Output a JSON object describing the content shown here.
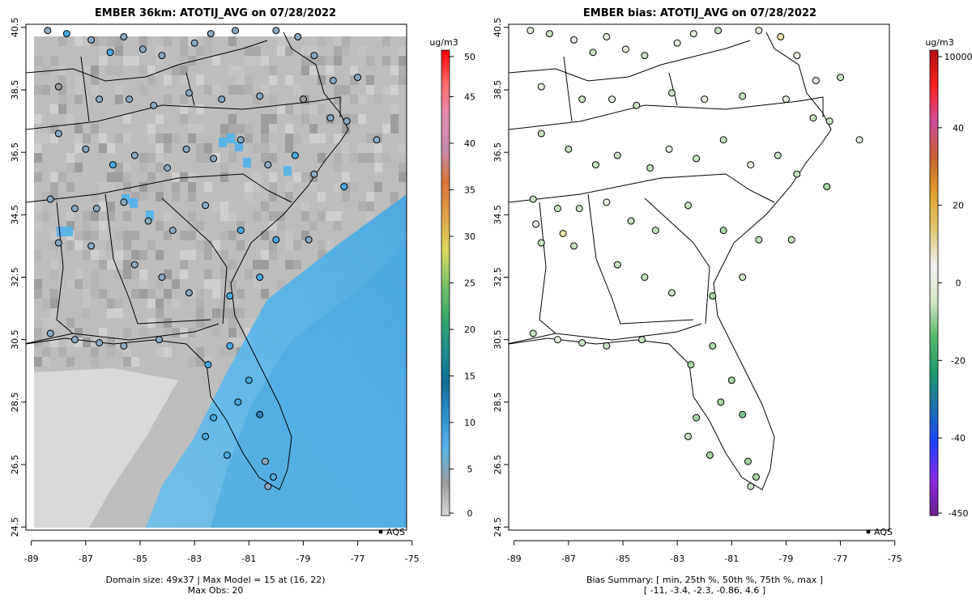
{
  "left_panel": {
    "title": "EMBER 36km: ATOTIJ_AVG on 07/28/2022",
    "footer_line1": "Domain size: 49x37 | Max Model = 15 at (16, 22)",
    "footer_line2": "Max Obs: 20",
    "legend_unit": "ug/m3",
    "aqs_label": "AQS",
    "colorbar_ticks": [
      "0",
      "5",
      "10",
      "15",
      "20",
      "25",
      "30",
      "35",
      "40",
      "45",
      "50"
    ],
    "colorbar_stops": [
      "#d9d9d9",
      "#9a9a9a",
      "#5cb3e8",
      "#2f8fcc",
      "#156e96",
      "#1e8f8a",
      "#3aa66a",
      "#7fc36a",
      "#d8d85a",
      "#e0a24a",
      "#d8753a",
      "#c48aa8",
      "#e08bb0",
      "#ff6a6a",
      "#ff0000"
    ]
  },
  "right_panel": {
    "title": "EMBER bias: ATOTIJ_AVG on 07/28/2022",
    "footer_line1": "Bias Summary: [ min, 25th %, 50th %, 75th %, max ]",
    "footer_line2": "[ -11,   -3.4,   -2.3,   -0.86,   4.6 ]",
    "legend_unit": "ug/m3",
    "aqs_label": "AQS",
    "colorbar_ticks": [
      "-450",
      "-40",
      "-20",
      "0",
      "20",
      "40",
      "10000"
    ],
    "colorbar_stops": [
      "#6a1f8a",
      "#8a2be2",
      "#2040ff",
      "#1e6fb0",
      "#1e9a6a",
      "#5ab86a",
      "#d6e8c8",
      "#f0f0f0",
      "#e0c870",
      "#e0a030",
      "#c86030",
      "#d04c9a",
      "#ff2020",
      "#b01010"
    ]
  },
  "axes": {
    "x_ticks": [
      "-89",
      "-87",
      "-85",
      "-83",
      "-81",
      "-79",
      "-77",
      "-75"
    ],
    "y_ticks": [
      "24.5",
      "26.5",
      "28.5",
      "30.5",
      "32.5",
      "34.5",
      "36.5",
      "38.5",
      "40.5"
    ],
    "lon_range": [
      -89.2,
      -75.2
    ],
    "lat_range": [
      24.4,
      40.6
    ]
  },
  "stations": {
    "obs_sample": [
      [
        -88.4,
        40.4,
        9
      ],
      [
        -87.7,
        40.3,
        11
      ],
      [
        -86.8,
        40.1,
        7
      ],
      [
        -86.1,
        39.7,
        12
      ],
      [
        -85.6,
        40.2,
        6
      ],
      [
        -84.9,
        39.8,
        8
      ],
      [
        -84.2,
        39.6,
        7
      ],
      [
        -83.0,
        40.0,
        9
      ],
      [
        -82.4,
        40.3,
        8
      ],
      [
        -81.5,
        40.4,
        10
      ],
      [
        -80.0,
        40.4,
        9
      ],
      [
        -79.2,
        40.2,
        7
      ],
      [
        -78.6,
        39.6,
        8
      ],
      [
        -77.9,
        38.8,
        7
      ],
      [
        -77.0,
        38.9,
        8
      ],
      [
        -88.0,
        38.6,
        5
      ],
      [
        -86.5,
        38.2,
        6
      ],
      [
        -85.4,
        38.2,
        7
      ],
      [
        -84.5,
        38.0,
        6
      ],
      [
        -83.2,
        38.4,
        8
      ],
      [
        -82.0,
        38.2,
        7
      ],
      [
        -80.6,
        38.3,
        6
      ],
      [
        -79.0,
        38.2,
        5
      ],
      [
        -78.0,
        37.6,
        7
      ],
      [
        -77.4,
        37.5,
        8
      ],
      [
        -76.3,
        36.9,
        7
      ],
      [
        -88.0,
        37.1,
        8
      ],
      [
        -87.0,
        36.6,
        10
      ],
      [
        -86.0,
        36.1,
        11
      ],
      [
        -85.2,
        36.4,
        7
      ],
      [
        -84.0,
        36.0,
        9
      ],
      [
        -83.3,
        36.6,
        8
      ],
      [
        -82.3,
        36.3,
        7
      ],
      [
        -81.3,
        36.9,
        10
      ],
      [
        -80.3,
        36.1,
        10
      ],
      [
        -79.3,
        36.4,
        11
      ],
      [
        -78.6,
        35.8,
        9
      ],
      [
        -77.5,
        35.4,
        12
      ],
      [
        -88.3,
        35.0,
        6
      ],
      [
        -87.4,
        34.7,
        7
      ],
      [
        -86.6,
        34.7,
        8
      ],
      [
        -85.6,
        34.9,
        9
      ],
      [
        -84.7,
        34.3,
        8
      ],
      [
        -83.8,
        34.0,
        10
      ],
      [
        -82.6,
        34.8,
        8
      ],
      [
        -81.3,
        34.0,
        11
      ],
      [
        -80.0,
        33.7,
        12
      ],
      [
        -78.8,
        33.7,
        10
      ],
      [
        -88.0,
        33.6,
        6
      ],
      [
        -86.8,
        33.5,
        9
      ],
      [
        -85.2,
        32.9,
        8
      ],
      [
        -84.2,
        32.5,
        10
      ],
      [
        -83.2,
        32.0,
        7
      ],
      [
        -81.7,
        31.9,
        11
      ],
      [
        -80.6,
        32.5,
        12
      ],
      [
        -88.3,
        30.7,
        8
      ],
      [
        -87.4,
        30.5,
        6
      ],
      [
        -86.5,
        30.4,
        8
      ],
      [
        -85.6,
        30.3,
        9
      ],
      [
        -84.3,
        30.5,
        9
      ],
      [
        -82.5,
        29.7,
        12
      ],
      [
        -81.7,
        30.3,
        14
      ],
      [
        -81.0,
        29.2,
        15
      ],
      [
        -80.6,
        28.1,
        16
      ],
      [
        -82.3,
        28.0,
        13
      ],
      [
        -81.4,
        28.5,
        15
      ],
      [
        -82.6,
        27.4,
        12
      ],
      [
        -81.8,
        26.8,
        12
      ],
      [
        -80.1,
        26.1,
        11
      ],
      [
        -80.3,
        25.8,
        10
      ],
      [
        -80.4,
        26.6,
        9
      ]
    ],
    "bias_sample": [
      [
        -88.4,
        40.4,
        -1
      ],
      [
        -87.7,
        40.3,
        -2
      ],
      [
        -86.8,
        40.1,
        -1
      ],
      [
        -86.1,
        39.7,
        -2
      ],
      [
        -85.6,
        40.2,
        0
      ],
      [
        -84.9,
        39.8,
        -1
      ],
      [
        -84.2,
        39.6,
        -2
      ],
      [
        -83.0,
        40.0,
        -1
      ],
      [
        -82.4,
        40.3,
        -1
      ],
      [
        -81.5,
        40.4,
        -2
      ],
      [
        -80.0,
        40.4,
        0
      ],
      [
        -79.2,
        40.2,
        3
      ],
      [
        -78.6,
        39.6,
        -1
      ],
      [
        -77.9,
        38.8,
        -1
      ],
      [
        -77.0,
        38.9,
        -2
      ],
      [
        -88.0,
        38.6,
        -1
      ],
      [
        -86.5,
        38.2,
        -2
      ],
      [
        -85.4,
        38.2,
        -1
      ],
      [
        -84.5,
        38.0,
        -2
      ],
      [
        -83.2,
        38.4,
        -3
      ],
      [
        -82.0,
        38.2,
        -1
      ],
      [
        -80.6,
        38.3,
        -2
      ],
      [
        -79.0,
        38.2,
        -1
      ],
      [
        -78.0,
        37.6,
        -3
      ],
      [
        -77.4,
        37.5,
        -2
      ],
      [
        -76.3,
        36.9,
        -1
      ],
      [
        -88.0,
        37.1,
        -3
      ],
      [
        -87.0,
        36.6,
        -2
      ],
      [
        -86.0,
        36.1,
        -3
      ],
      [
        -85.2,
        36.4,
        -2
      ],
      [
        -84.0,
        36.0,
        -2
      ],
      [
        -83.3,
        36.6,
        -1
      ],
      [
        -82.3,
        36.3,
        -3
      ],
      [
        -81.3,
        36.9,
        -2
      ],
      [
        -80.3,
        36.1,
        1
      ],
      [
        -79.3,
        36.4,
        -2
      ],
      [
        -78.6,
        35.8,
        -3
      ],
      [
        -77.5,
        35.4,
        -4
      ],
      [
        -88.3,
        35.0,
        -2
      ],
      [
        -87.4,
        34.7,
        -3
      ],
      [
        -86.6,
        34.7,
        -2
      ],
      [
        -85.6,
        34.9,
        -1
      ],
      [
        -84.7,
        34.3,
        -2
      ],
      [
        -83.8,
        34.0,
        -3
      ],
      [
        -82.6,
        34.8,
        -2
      ],
      [
        -81.3,
        34.0,
        -4
      ],
      [
        -80.0,
        33.7,
        -3
      ],
      [
        -78.8,
        33.7,
        -3
      ],
      [
        -88.0,
        33.6,
        -2
      ],
      [
        -86.8,
        33.5,
        -3
      ],
      [
        -85.2,
        32.9,
        -2
      ],
      [
        -84.2,
        32.5,
        -3
      ],
      [
        -83.2,
        32.0,
        -2
      ],
      [
        -81.7,
        31.9,
        -4
      ],
      [
        -80.6,
        32.5,
        -3
      ],
      [
        -88.3,
        30.7,
        -2
      ],
      [
        -87.4,
        30.5,
        -1
      ],
      [
        -86.5,
        30.4,
        -2
      ],
      [
        -85.6,
        30.3,
        -3
      ],
      [
        -84.3,
        30.5,
        -3
      ],
      [
        -82.5,
        29.7,
        -4
      ],
      [
        -81.7,
        30.3,
        -5
      ],
      [
        -81.0,
        29.2,
        -4
      ],
      [
        -80.6,
        28.1,
        -6
      ],
      [
        -82.3,
        28.0,
        -5
      ],
      [
        -81.4,
        28.5,
        -4
      ],
      [
        -82.6,
        27.4,
        -3
      ],
      [
        -81.8,
        26.8,
        -4
      ],
      [
        -80.1,
        26.1,
        -5
      ],
      [
        -80.3,
        25.8,
        -3
      ],
      [
        -80.4,
        26.6,
        -4
      ],
      [
        -87.2,
        33.9,
        3
      ],
      [
        -88.2,
        34.2,
        -1
      ]
    ]
  }
}
